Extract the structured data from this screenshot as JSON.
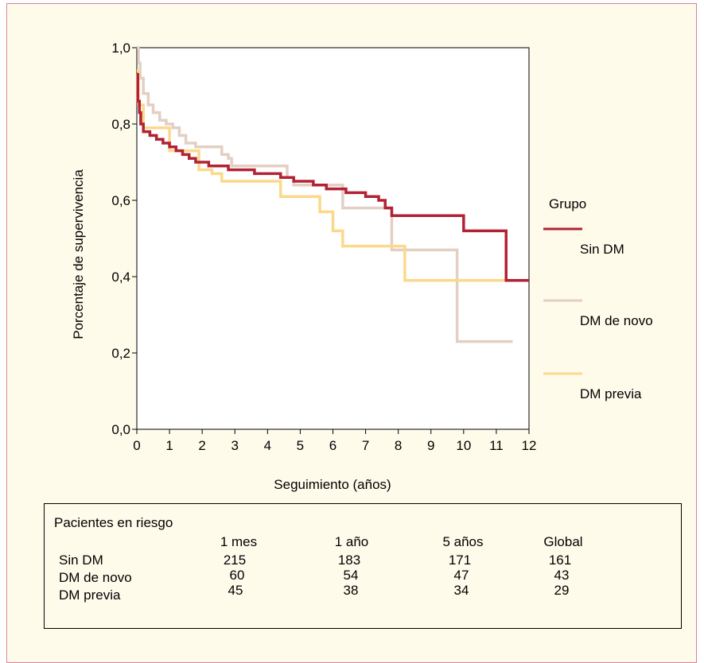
{
  "chart_data": {
    "type": "line",
    "step": true,
    "xlabel": "Seguimiento (años)",
    "ylabel": "Porcentaje de supervivencia",
    "xlim": [
      0,
      12
    ],
    "ylim": [
      0,
      1
    ],
    "x_ticks": [
      "0",
      "1",
      "2",
      "3",
      "4",
      "5",
      "6",
      "7",
      "8",
      "9",
      "10",
      "11",
      "12"
    ],
    "y_ticks": [
      "0,0",
      "0,2",
      "0,4",
      "0,6",
      "0,8",
      "1,0"
    ],
    "legend_title": "Grupo",
    "legend_position": "right",
    "series": [
      {
        "name": "Sin DM",
        "color": "#b22234",
        "points": [
          [
            0,
            0.93
          ],
          [
            0.03,
            0.86
          ],
          [
            0.08,
            0.83
          ],
          [
            0.12,
            0.8
          ],
          [
            0.2,
            0.78
          ],
          [
            0.4,
            0.77
          ],
          [
            0.6,
            0.76
          ],
          [
            0.8,
            0.75
          ],
          [
            1.0,
            0.74
          ],
          [
            1.2,
            0.73
          ],
          [
            1.4,
            0.72
          ],
          [
            1.6,
            0.71
          ],
          [
            1.8,
            0.7
          ],
          [
            2.2,
            0.69
          ],
          [
            2.8,
            0.68
          ],
          [
            3.6,
            0.67
          ],
          [
            4.4,
            0.66
          ],
          [
            4.8,
            0.65
          ],
          [
            5.4,
            0.64
          ],
          [
            5.8,
            0.63
          ],
          [
            6.4,
            0.62
          ],
          [
            7.0,
            0.61
          ],
          [
            7.4,
            0.6
          ],
          [
            7.6,
            0.58
          ],
          [
            7.8,
            0.56
          ],
          [
            10.0,
            0.52
          ],
          [
            11.3,
            0.39
          ],
          [
            12.0,
            0.39
          ]
        ]
      },
      {
        "name": "DM de novo",
        "color": "#e3cfc3",
        "points": [
          [
            0,
            1.0
          ],
          [
            0.05,
            0.96
          ],
          [
            0.1,
            0.92
          ],
          [
            0.2,
            0.88
          ],
          [
            0.35,
            0.85
          ],
          [
            0.5,
            0.83
          ],
          [
            0.7,
            0.81
          ],
          [
            0.9,
            0.8
          ],
          [
            1.1,
            0.79
          ],
          [
            1.3,
            0.77
          ],
          [
            1.5,
            0.75
          ],
          [
            1.8,
            0.74
          ],
          [
            2.6,
            0.72
          ],
          [
            2.8,
            0.71
          ],
          [
            2.9,
            0.69
          ],
          [
            4.0,
            0.69
          ],
          [
            4.6,
            0.66
          ],
          [
            4.8,
            0.64
          ],
          [
            6.3,
            0.58
          ],
          [
            7.8,
            0.47
          ],
          [
            9.8,
            0.23
          ],
          [
            11.5,
            0.23
          ]
        ]
      },
      {
        "name": "DM previa",
        "color": "#fbd98a",
        "points": [
          [
            0,
            0.94
          ],
          [
            0.05,
            0.85
          ],
          [
            0.2,
            0.79
          ],
          [
            1.0,
            0.73
          ],
          [
            1.9,
            0.68
          ],
          [
            2.3,
            0.67
          ],
          [
            2.6,
            0.65
          ],
          [
            4.4,
            0.61
          ],
          [
            5.6,
            0.57
          ],
          [
            6.0,
            0.52
          ],
          [
            6.3,
            0.48
          ],
          [
            8.2,
            0.39
          ],
          [
            12.0,
            0.39
          ]
        ]
      }
    ]
  },
  "risk_table": {
    "title": "Pacientes en riesgo",
    "columns": [
      "1 mes",
      "1 año",
      "5 años",
      "Global"
    ],
    "rows": [
      {
        "label": "Sin DM",
        "values": [
          "215",
          "183",
          "171",
          "161"
        ]
      },
      {
        "label": "DM de novo",
        "values": [
          "60",
          "54",
          "47",
          "43"
        ]
      },
      {
        "label": "DM previa",
        "values": [
          "45",
          "38",
          "34",
          "29"
        ]
      }
    ]
  }
}
